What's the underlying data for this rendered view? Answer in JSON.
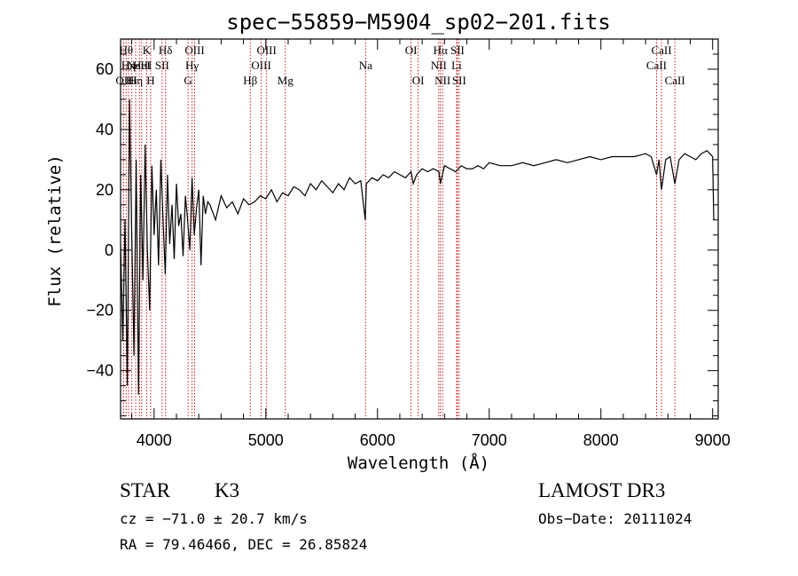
{
  "chart_data": {
    "type": "line",
    "title": "spec−55859−M5904_sp02−201.fits",
    "xlabel": "Wavelength (Å)",
    "ylabel": "Flux (relative)",
    "xlim": [
      3700,
      9050
    ],
    "ylim": [
      -56,
      70
    ],
    "xticks": [
      4000,
      5000,
      6000,
      7000,
      8000,
      9000
    ],
    "yticks": [
      -40,
      -20,
      0,
      20,
      40,
      60
    ],
    "ytick_labels": [
      "−40",
      "−20",
      "0",
      "20",
      "40",
      "60"
    ],
    "series": [
      {
        "name": "spectrum",
        "x": [
          3700,
          3720,
          3740,
          3760,
          3780,
          3800,
          3820,
          3840,
          3860,
          3880,
          3900,
          3920,
          3940,
          3960,
          3980,
          4000,
          4020,
          4040,
          4060,
          4080,
          4100,
          4120,
          4140,
          4160,
          4180,
          4200,
          4220,
          4240,
          4260,
          4280,
          4300,
          4320,
          4340,
          4360,
          4380,
          4400,
          4420,
          4440,
          4460,
          4480,
          4500,
          4550,
          4600,
          4650,
          4700,
          4750,
          4800,
          4850,
          4900,
          4950,
          5000,
          5050,
          5100,
          5150,
          5200,
          5250,
          5300,
          5350,
          5400,
          5450,
          5500,
          5550,
          5600,
          5650,
          5700,
          5750,
          5800,
          5850,
          5890,
          5900,
          5950,
          6000,
          6050,
          6100,
          6150,
          6200,
          6250,
          6300,
          6320,
          6350,
          6400,
          6450,
          6500,
          6550,
          6563,
          6600,
          6650,
          6700,
          6750,
          6800,
          6850,
          6900,
          6950,
          7000,
          7100,
          7200,
          7300,
          7400,
          7500,
          7600,
          7700,
          7800,
          7900,
          8000,
          8100,
          8200,
          8300,
          8400,
          8450,
          8498,
          8520,
          8542,
          8580,
          8620,
          8662,
          8700,
          8750,
          8800,
          8850,
          8900,
          8950,
          9000,
          9010
        ],
        "y": [
          2,
          -30,
          10,
          -45,
          50,
          5,
          -35,
          30,
          -48,
          25,
          -10,
          35,
          0,
          -20,
          28,
          5,
          20,
          -5,
          30,
          10,
          -8,
          25,
          2,
          15,
          -3,
          22,
          8,
          12,
          -2,
          18,
          10,
          0,
          24,
          5,
          14,
          20,
          -5,
          18,
          12,
          16,
          15,
          10,
          18,
          14,
          16,
          12,
          17,
          15,
          16,
          18,
          17,
          20,
          16,
          19,
          18,
          21,
          20,
          18,
          22,
          20,
          23,
          21,
          19,
          22,
          20,
          24,
          22,
          23,
          10,
          22,
          24,
          23,
          25,
          24,
          26,
          25,
          24,
          26,
          22,
          25,
          27,
          26,
          27,
          26,
          22,
          28,
          27,
          26,
          28,
          27,
          27,
          28,
          27,
          29,
          28,
          28,
          29,
          28,
          29,
          30,
          29,
          30,
          31,
          30,
          31,
          31,
          31,
          32,
          31,
          25,
          30,
          20,
          30,
          31,
          22,
          30,
          32,
          31,
          30,
          32,
          33,
          31,
          10
        ]
      }
    ],
    "spectral_lines": [
      {
        "x": 3727,
        "label": "OII",
        "row": 2
      },
      {
        "x": 3750,
        "label": "Hθ",
        "row": 0
      },
      {
        "x": 3771,
        "label": "Hη",
        "row": 1
      },
      {
        "x": 3798,
        "label": "Hi",
        "row": 2
      },
      {
        "x": 3835,
        "label": "Hη",
        "row": 2
      },
      {
        "x": 3869,
        "label": "NeIII",
        "row": 1
      },
      {
        "x": 3889,
        "label": "HeI",
        "row": 1
      },
      {
        "x": 3934,
        "label": "K",
        "row": 0
      },
      {
        "x": 3969,
        "label": "H",
        "row": 2
      },
      {
        "x": 4072,
        "label": "SII",
        "row": 1
      },
      {
        "x": 4102,
        "label": "Hδ",
        "row": 0
      },
      {
        "x": 4304,
        "label": "G",
        "row": 2
      },
      {
        "x": 4340,
        "label": "Hγ",
        "row": 1
      },
      {
        "x": 4363,
        "label": "OIII",
        "row": 0
      },
      {
        "x": 4861,
        "label": "Hβ",
        "row": 2
      },
      {
        "x": 4959,
        "label": "OIII",
        "row": 1
      },
      {
        "x": 5007,
        "label": "OIII",
        "row": 0
      },
      {
        "x": 5175,
        "label": "Mg",
        "row": 2
      },
      {
        "x": 5893,
        "label": "Na",
        "row": 1
      },
      {
        "x": 6300,
        "label": "OI",
        "row": 0
      },
      {
        "x": 6364,
        "label": "OI",
        "row": 2
      },
      {
        "x": 6548,
        "label": "NII",
        "row": 1
      },
      {
        "x": 6563,
        "label": "Hα",
        "row": 0
      },
      {
        "x": 6583,
        "label": "NII",
        "row": 2
      },
      {
        "x": 6708,
        "label": "Li",
        "row": 1
      },
      {
        "x": 6716,
        "label": "SII",
        "row": 0
      },
      {
        "x": 6731,
        "label": "SII",
        "row": 2
      },
      {
        "x": 8498,
        "label": "CaII",
        "row": 1
      },
      {
        "x": 8542,
        "label": "CaII",
        "row": 0
      },
      {
        "x": 8662,
        "label": "CaII",
        "row": 2
      }
    ]
  },
  "info": {
    "class_label": "STAR",
    "subclass_label": "K3",
    "survey_label": "LAMOST DR3",
    "cz_text": "cz = −71.0 ± 20.7 km/s",
    "obs_date_text": "Obs−Date: 20111024",
    "coords_text": "RA =  79.46466, DEC =  26.85824"
  },
  "colors": {
    "spectrum": "#000000",
    "line_markers": "#cc0000",
    "axes": "#000000"
  }
}
